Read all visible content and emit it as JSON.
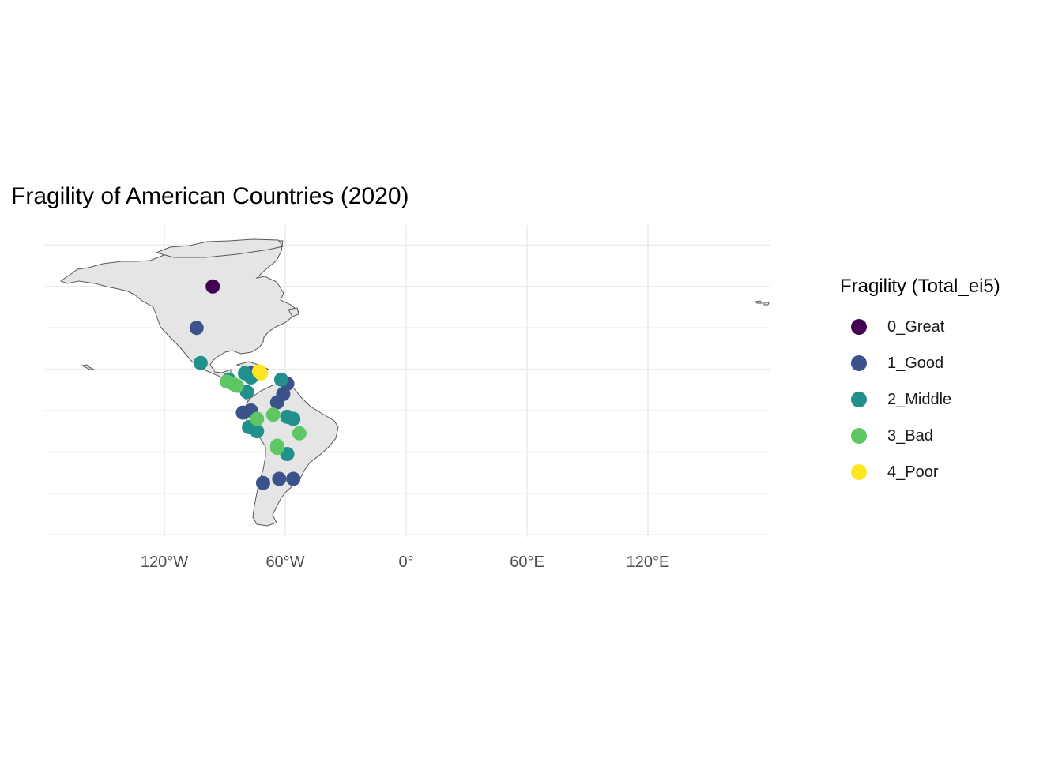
{
  "title": "Fragility of American Countries (2020)",
  "legend": {
    "title": "Fragility (Total_ei5)",
    "items": [
      {
        "label": "0_Great",
        "color": "#440154"
      },
      {
        "label": "1_Good",
        "color": "#3b528b"
      },
      {
        "label": "2_Middle",
        "color": "#21908c"
      },
      {
        "label": "3_Bad",
        "color": "#5dc863"
      },
      {
        "label": "4_Poor",
        "color": "#fde725"
      }
    ]
  },
  "chart_data": {
    "type": "scatter",
    "title": "Fragility of American Countries (2020)",
    "xlabel": "",
    "ylabel": "",
    "x_ticks": [
      {
        "value": -120,
        "label": "120°W"
      },
      {
        "value": -60,
        "label": "60°W"
      },
      {
        "value": 0,
        "label": "0°"
      },
      {
        "value": 60,
        "label": "60°E"
      },
      {
        "value": 120,
        "label": "120°E"
      }
    ],
    "xlim": [
      -180,
      180
    ],
    "ylim": [
      -60,
      90
    ],
    "grid": true,
    "legend_position": "right",
    "basemap_color": "#e5e5e5",
    "border_color": "#595959",
    "series": [
      {
        "name": "0_Great",
        "points": [
          [
            -96,
            60
          ]
        ]
      },
      {
        "name": "1_Good",
        "points": [
          [
            -104,
            40
          ],
          [
            -77,
            18
          ],
          [
            -59,
            13
          ],
          [
            -61,
            8
          ],
          [
            -64,
            4
          ],
          [
            -81,
            -1
          ],
          [
            -77,
            0
          ],
          [
            -71,
            -35
          ],
          [
            -63,
            -33
          ],
          [
            -56,
            -33
          ]
        ]
      },
      {
        "name": "2_Middle",
        "points": [
          [
            -102,
            23
          ],
          [
            -88,
            15
          ],
          [
            -80,
            18
          ],
          [
            -77,
            16
          ],
          [
            -62,
            15
          ],
          [
            -79,
            9
          ],
          [
            -59,
            -3
          ],
          [
            -56,
            -4
          ],
          [
            -78,
            -8
          ],
          [
            -74,
            -10
          ],
          [
            -59,
            -21
          ]
        ]
      },
      {
        "name": "3_Bad",
        "points": [
          [
            -89,
            14
          ],
          [
            -86,
            13
          ],
          [
            -84,
            12
          ],
          [
            -74,
            -4
          ],
          [
            -66,
            -2
          ],
          [
            -53,
            -11
          ],
          [
            -64,
            -17
          ],
          [
            -64,
            -18
          ]
        ]
      },
      {
        "name": "4_Poor",
        "points": [
          [
            -72,
            18
          ],
          [
            -73,
            19
          ]
        ]
      }
    ]
  }
}
